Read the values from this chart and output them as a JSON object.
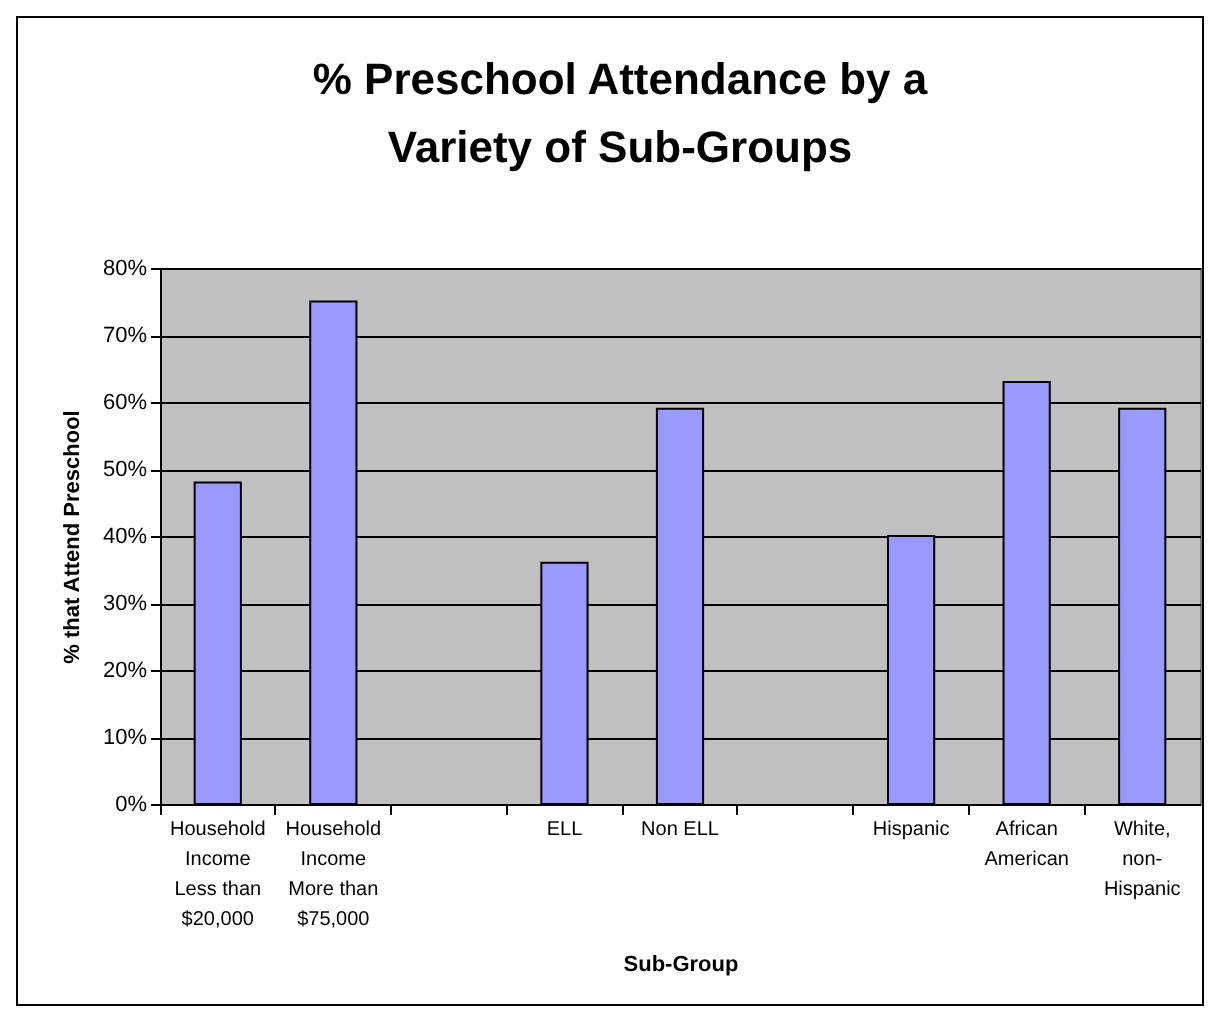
{
  "chart_data": {
    "type": "bar",
    "title": "% Preschool Attendance by a Variety of Sub-Groups",
    "xlabel": "Sub-Group",
    "ylabel": "% that Attend Preschool",
    "categories": [
      "Household Income Less than $20,000",
      "Household Income More than $75,000",
      null,
      "ELL",
      "Non ELL",
      null,
      "Hispanic",
      "African American",
      "White, non-Hispanic"
    ],
    "values": [
      48,
      75,
      null,
      36,
      59,
      null,
      40,
      63,
      59
    ],
    "color": "#9999ff",
    "ylim": [
      0,
      80
    ],
    "yticks": [
      {
        "value": 0,
        "label": "0%"
      },
      {
        "value": 10,
        "label": "10%"
      },
      {
        "value": 20,
        "label": "20%"
      },
      {
        "value": 30,
        "label": "30%"
      },
      {
        "value": 40,
        "label": "40%"
      },
      {
        "value": 50,
        "label": "50%"
      },
      {
        "value": 60,
        "label": "60%"
      },
      {
        "value": 70,
        "label": "70%"
      },
      {
        "value": 80,
        "label": "80%"
      }
    ],
    "grid": "y"
  }
}
